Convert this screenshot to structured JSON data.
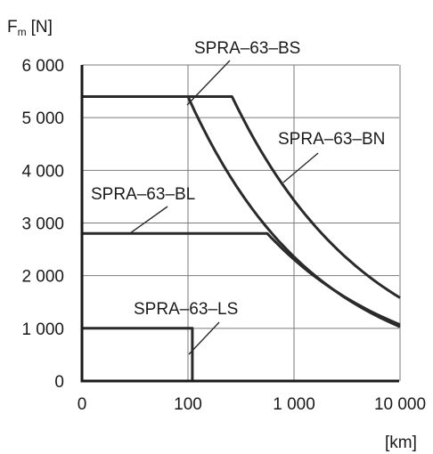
{
  "chart_data": {
    "type": "line",
    "title": "",
    "ylabel_main": "F",
    "ylabel_sub": "m",
    "ylabel_unit": "[N]",
    "xlabel": "[km]",
    "x_scale": "log-with-linear-first-decade",
    "x_ticks": [
      {
        "value": 0,
        "label": "0"
      },
      {
        "value": 100,
        "label": "100"
      },
      {
        "value": 1000,
        "label": "1 000"
      },
      {
        "value": 10000,
        "label": "10 000"
      }
    ],
    "y_ticks": [
      {
        "value": 0,
        "label": "0"
      },
      {
        "value": 1000,
        "label": "1 000"
      },
      {
        "value": 2000,
        "label": "2 000"
      },
      {
        "value": 3000,
        "label": "3 000"
      },
      {
        "value": 4000,
        "label": "4 000"
      },
      {
        "value": 5000,
        "label": "5 000"
      },
      {
        "value": 6000,
        "label": "6 000"
      }
    ],
    "xlim": [
      0,
      10000
    ],
    "ylim": [
      0,
      6000
    ],
    "grid": true,
    "series": [
      {
        "name": "SPRA–63–BS",
        "points": [
          [
            0,
            5400
          ],
          [
            100,
            5400
          ],
          [
            10000,
            1030
          ]
        ]
      },
      {
        "name": "SPRA–63–BN",
        "points": [
          [
            0,
            5400
          ],
          [
            260,
            5400
          ],
          [
            10000,
            1580
          ]
        ]
      },
      {
        "name": "SPRA–63–BL",
        "points": [
          [
            0,
            2800
          ],
          [
            560,
            2800
          ],
          [
            10000,
            1070
          ]
        ]
      },
      {
        "name": "SPRA–63–LS",
        "points": [
          [
            0,
            1000
          ],
          [
            110,
            1000
          ],
          [
            110,
            0
          ]
        ]
      }
    ]
  }
}
